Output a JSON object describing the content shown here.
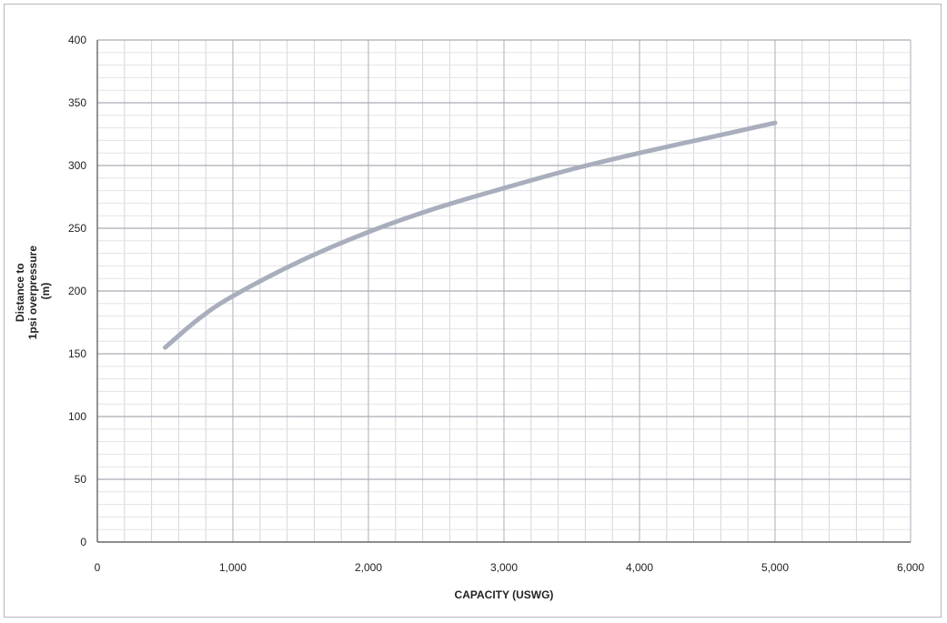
{
  "chart_data": {
    "type": "line",
    "title": "",
    "xlabel": "CAPACITY (USWG)",
    "ylabel_lines": [
      "Distance to",
      "1psi overpressure",
      "(m)"
    ],
    "xlim": [
      0,
      6000
    ],
    "ylim": [
      0,
      400
    ],
    "x_ticks": [
      0,
      1000,
      2000,
      3000,
      4000,
      5000,
      6000
    ],
    "x_tick_labels": [
      "0",
      "1,000",
      "2,000",
      "3,000",
      "4,000",
      "5,000",
      "6,000"
    ],
    "y_ticks": [
      0,
      50,
      100,
      150,
      200,
      250,
      300,
      350,
      400
    ],
    "y_tick_labels": [
      "0",
      "50",
      "100",
      "150",
      "200",
      "250",
      "300",
      "350",
      "400"
    ],
    "grid": true,
    "legend": "none",
    "series": [
      {
        "color": "#a9aebd",
        "x": [
          500,
          750,
          1000,
          1500,
          2000,
          2500,
          3000,
          3500,
          4000,
          4500,
          5000
        ],
        "y": [
          155,
          178,
          196,
          224,
          247,
          266,
          282,
          297,
          310,
          322,
          334
        ]
      }
    ]
  }
}
